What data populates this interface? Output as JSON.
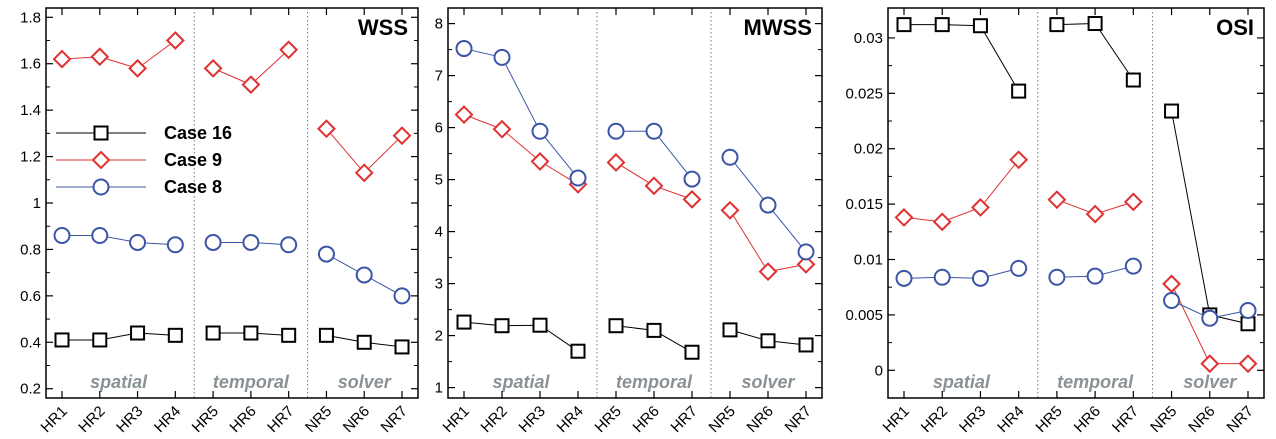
{
  "chart_data": [
    {
      "type": "line",
      "title": "WSS",
      "categories": [
        "HR1",
        "HR2",
        "HR3",
        "HR4",
        "HR5",
        "HR6",
        "HR7",
        "NR5",
        "NR6",
        "NR7"
      ],
      "groups": [
        {
          "label": "spatial",
          "categories": [
            "HR1",
            "HR2",
            "HR3",
            "HR4"
          ]
        },
        {
          "label": "temporal",
          "categories": [
            "HR5",
            "HR6",
            "HR7"
          ]
        },
        {
          "label": "solver",
          "categories": [
            "NR5",
            "NR6",
            "NR7"
          ]
        }
      ],
      "ylim": [
        0.16,
        1.84
      ],
      "yticks": [
        0.2,
        0.4,
        0.6,
        0.8,
        1.0,
        1.2,
        1.4,
        1.6,
        1.8
      ],
      "ytick_labels": [
        "0.2",
        "0.4",
        "0.6",
        "0.8",
        "1",
        "1.2",
        "1.4",
        "1.6",
        "1.8"
      ],
      "legend": "left-middle",
      "series": [
        {
          "name": "Case 16",
          "color": "#000000",
          "marker": "square",
          "values": [
            0.41,
            0.41,
            0.44,
            0.43,
            0.44,
            0.44,
            0.43,
            0.43,
            0.4,
            0.38
          ]
        },
        {
          "name": "Case 9",
          "color": "#e03030",
          "marker": "diamond",
          "values": [
            1.62,
            1.63,
            1.58,
            1.7,
            1.58,
            1.51,
            1.66,
            1.32,
            1.13,
            1.29
          ]
        },
        {
          "name": "Case 8",
          "color": "#3c55a5",
          "marker": "circle",
          "values": [
            0.86,
            0.86,
            0.83,
            0.82,
            0.83,
            0.83,
            0.82,
            0.78,
            0.69,
            0.6
          ]
        }
      ]
    },
    {
      "type": "line",
      "title": "MWSS",
      "categories": [
        "HR1",
        "HR2",
        "HR3",
        "HR4",
        "HR5",
        "HR6",
        "HR7",
        "NR5",
        "NR6",
        "NR7"
      ],
      "groups": [
        {
          "label": "spatial",
          "categories": [
            "HR1",
            "HR2",
            "HR3",
            "HR4"
          ]
        },
        {
          "label": "temporal",
          "categories": [
            "HR5",
            "HR6",
            "HR7"
          ]
        },
        {
          "label": "solver",
          "categories": [
            "NR5",
            "NR6",
            "NR7"
          ]
        }
      ],
      "ylim": [
        0.8,
        8.3
      ],
      "yticks": [
        1,
        2,
        3,
        4,
        5,
        6,
        7,
        8
      ],
      "ytick_labels": [
        "1",
        "2",
        "3",
        "4",
        "5",
        "6",
        "7",
        "8"
      ],
      "series": [
        {
          "name": "Case 16",
          "color": "#000000",
          "marker": "square",
          "values": [
            2.26,
            2.19,
            2.2,
            1.7,
            2.19,
            2.1,
            1.68,
            2.11,
            1.9,
            1.82
          ]
        },
        {
          "name": "Case 9",
          "color": "#e03030",
          "marker": "diamond",
          "values": [
            6.25,
            5.97,
            5.35,
            4.91,
            5.33,
            4.88,
            4.62,
            4.41,
            3.23,
            3.37
          ]
        },
        {
          "name": "Case 8",
          "color": "#3c55a5",
          "marker": "circle",
          "values": [
            7.52,
            7.35,
            5.93,
            5.03,
            5.93,
            5.93,
            5.01,
            5.43,
            4.51,
            3.61
          ]
        }
      ]
    },
    {
      "type": "line",
      "title": "OSI",
      "categories": [
        "HR1",
        "HR2",
        "HR3",
        "HR4",
        "HR5",
        "HR6",
        "HR7",
        "NR5",
        "NR6",
        "NR7"
      ],
      "groups": [
        {
          "label": "spatial",
          "categories": [
            "HR1",
            "HR2",
            "HR3",
            "HR4"
          ]
        },
        {
          "label": "temporal",
          "categories": [
            "HR5",
            "HR6",
            "HR7"
          ]
        },
        {
          "label": "solver",
          "categories": [
            "NR5",
            "NR6",
            "NR7"
          ]
        }
      ],
      "ylim": [
        -0.0025,
        0.0327
      ],
      "yticks": [
        0,
        0.005,
        0.01,
        0.015,
        0.02,
        0.025,
        0.03
      ],
      "ytick_labels": [
        "0",
        "0.005",
        "0.01",
        "0.015",
        "0.02",
        "0.025",
        "0.03"
      ],
      "series": [
        {
          "name": "Case 16",
          "color": "#000000",
          "marker": "square",
          "values": [
            0.0312,
            0.0312,
            0.0311,
            0.0252,
            0.0312,
            0.0313,
            0.0262,
            0.0234,
            0.005,
            0.0042
          ]
        },
        {
          "name": "Case 9",
          "color": "#e03030",
          "marker": "diamond",
          "values": [
            0.0138,
            0.0134,
            0.0147,
            0.019,
            0.0154,
            0.0141,
            0.0152,
            0.0078,
            0.0006,
            0.0006
          ]
        },
        {
          "name": "Case 8",
          "color": "#3c55a5",
          "marker": "circle",
          "values": [
            0.0083,
            0.0084,
            0.0083,
            0.0092,
            0.0084,
            0.0085,
            0.0094,
            0.0063,
            0.0047,
            0.0054
          ]
        }
      ]
    }
  ]
}
